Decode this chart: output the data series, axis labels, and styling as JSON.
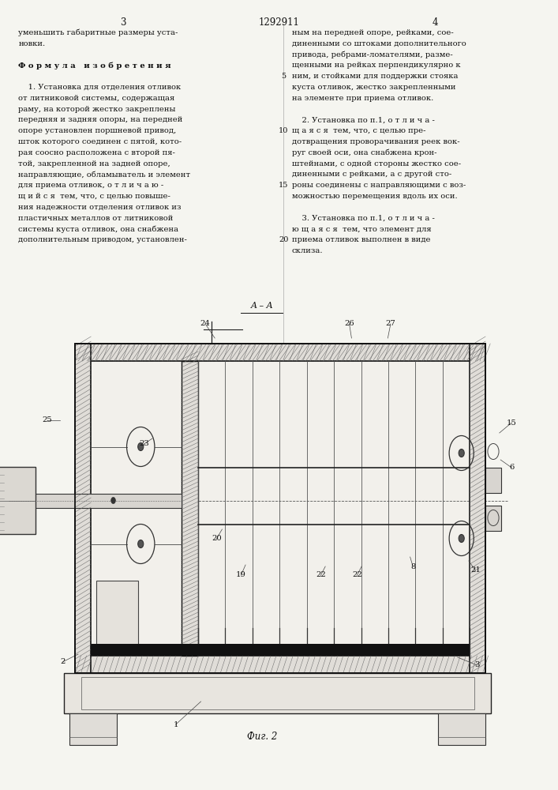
{
  "bg_color": "#f5f5f0",
  "page_width": 7.07,
  "page_height": 10.0,
  "header": {
    "page_num_left": "3",
    "patent_num": "1292911",
    "page_num_right": "4"
  },
  "col1_lines": [
    "уменьшить габаритные размеры уста-",
    "новки.",
    "",
    "Ф о р м у л а   и з о б р е т е н и я",
    "",
    "    1. Установка для отделения отливок",
    "от литниковой системы, содержащая",
    "раму, на которой жестко закреплены",
    "передняя и задняя опоры, на передней",
    "опоре установлен поршневой привод,",
    "шток которого соединен с пятой, кото-",
    "рая соосно расположена с второй пя-",
    "той, закрепленной на задней опоре,",
    "направляющие, обламыватель и элемент",
    "для приема отливок, о т л и ч а ю -",
    "щ и й с я  тем, что, с целью повыше-",
    "ния надежности отделения отливок из",
    "пластичных металлов от литниковой",
    "системы куста отливок, она снабжена",
    "дополнительным приводом, установлен-"
  ],
  "col2_lines": [
    "ным на передней опоре, рейками, сое-",
    "диненными со штоками дополнительного",
    "привода, ребрами-ломателями, разме-",
    "щенными на рейках перпендикулярно к",
    "ним, и стойками для поддержки стояка",
    "куста отливок, жестко закрепленными",
    "на элементе при приема отливок.",
    "",
    "    2. Установка по п.1, о т л и ч а -",
    "щ а я с я  тем, что, с целью пре-",
    "дотвращения проворачивания реек вок-",
    "руг своей оси, она снабжена крон-",
    "штейнами, с одной стороны жестко сое-",
    "диненными с рейками, а с другой сто-",
    "роны соединены с направляющими с воз-",
    "можностью перемещения вдоль их оси.",
    "",
    "    3. Установка по п.1, о т л и ч а -",
    "ю щ а я с я  тем, что элемент для",
    "приема отливок выполнен в виде",
    "склиза."
  ],
  "line_numbers_y_fracs": [
    0,
    5,
    10,
    15,
    20
  ],
  "fig_label": "Фиг. 2",
  "aa_label": "A – A"
}
